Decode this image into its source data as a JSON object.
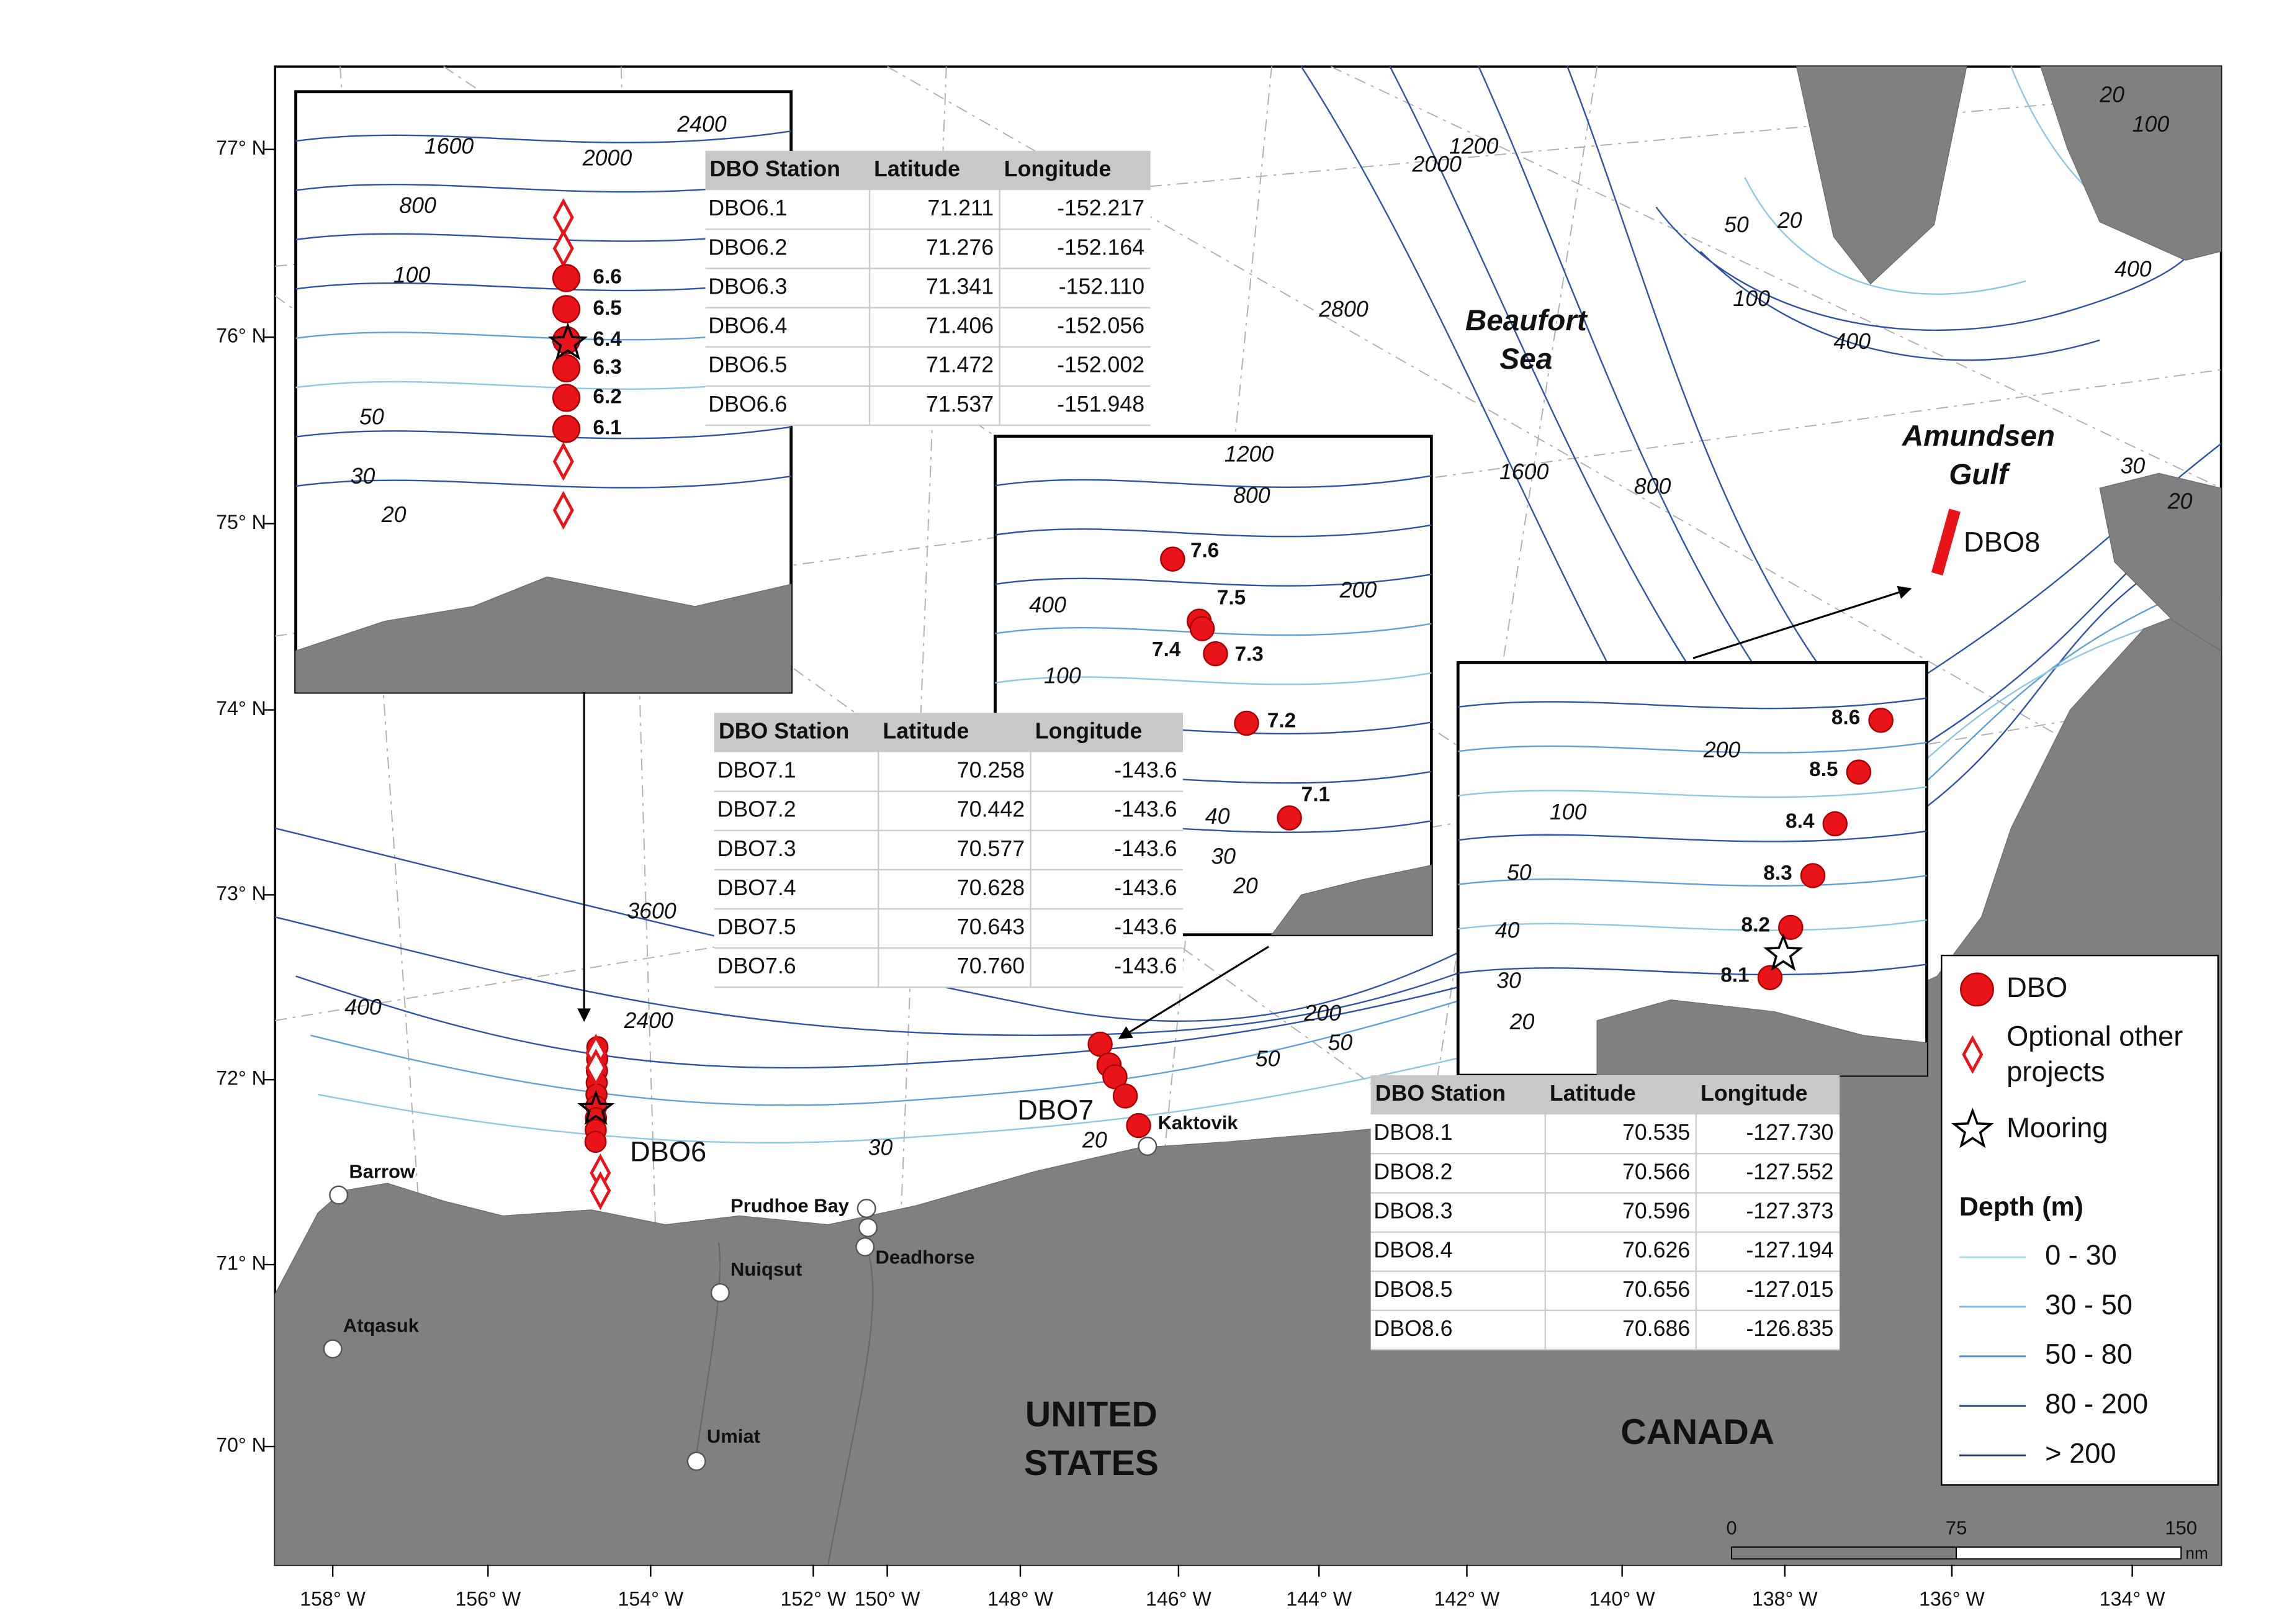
{
  "axis": {
    "lon_labels": [
      "158° W",
      "156° W",
      "154° W",
      "152° W",
      "150° W",
      "148° W",
      "146° W",
      "144° W",
      "142° W",
      "140° W",
      "138° W",
      "136° W",
      "134° W"
    ],
    "lat_labels": [
      "77° N",
      "76° N",
      "75° N",
      "74° N",
      "73° N",
      "72° N",
      "71° N",
      "70° N"
    ]
  },
  "contour_labels": [
    "2400",
    "1600",
    "2000",
    "800",
    "100",
    "50",
    "30",
    "20",
    "1200",
    "800",
    "400",
    "200",
    "100",
    "40",
    "30",
    "20",
    "200",
    "100",
    "50",
    "40",
    "30",
    "20",
    "1200",
    "2000",
    "2800",
    "1600",
    "800",
    "400",
    "100",
    "50",
    "20",
    "20",
    "100",
    "400",
    "30",
    "20",
    "3600",
    "2400",
    "400",
    "200",
    "50",
    "50",
    "30",
    "20"
  ],
  "regions": [
    {
      "lines": [
        "Beaufort",
        "Sea"
      ]
    },
    {
      "lines": [
        "Amundsen",
        "Gulf"
      ]
    }
  ],
  "countries": [
    {
      "lines": [
        "UNITED",
        "STATES"
      ]
    },
    {
      "lines": [
        "CANADA"
      ]
    }
  ],
  "places": [
    "Barrow",
    "Atqasuk",
    "Prudhoe Bay",
    "Deadhorse",
    "Nuiqsut",
    "Umiat",
    "Kaktovik"
  ],
  "station_groups": [
    "DBO6",
    "DBO7",
    "DBO8"
  ],
  "insets": [
    {
      "stations": [
        "6.6",
        "6.5",
        "6.4",
        "6.3",
        "6.2",
        "6.1"
      ]
    },
    {
      "stations": [
        "7.6",
        "7.5",
        "7.4",
        "7.3",
        "7.2",
        "7.1"
      ]
    },
    {
      "stations": [
        "8.6",
        "8.5",
        "8.4",
        "8.3",
        "8.2",
        "8.1"
      ]
    }
  ],
  "tables": [
    {
      "header": [
        "DBO Station",
        "Latitude",
        "Longitude"
      ],
      "rows": [
        [
          "DBO6.1",
          "71.211",
          "-152.217"
        ],
        [
          "DBO6.2",
          "71.276",
          "-152.164"
        ],
        [
          "DBO6.3",
          "71.341",
          "-152.110"
        ],
        [
          "DBO6.4",
          "71.406",
          "-152.056"
        ],
        [
          "DBO6.5",
          "71.472",
          "-152.002"
        ],
        [
          "DBO6.6",
          "71.537",
          "-151.948"
        ]
      ]
    },
    {
      "header": [
        "DBO Station",
        "Latitude",
        "Longitude"
      ],
      "rows": [
        [
          "DBO7.1",
          "70.258",
          "-143.6"
        ],
        [
          "DBO7.2",
          "70.442",
          "-143.6"
        ],
        [
          "DBO7.3",
          "70.577",
          "-143.6"
        ],
        [
          "DBO7.4",
          "70.628",
          "-143.6"
        ],
        [
          "DBO7.5",
          "70.643",
          "-143.6"
        ],
        [
          "DBO7.6",
          "70.760",
          "-143.6"
        ]
      ]
    },
    {
      "header": [
        "DBO Station",
        "Latitude",
        "Longitude"
      ],
      "rows": [
        [
          "DBO8.1",
          "70.535",
          "-127.730"
        ],
        [
          "DBO8.2",
          "70.566",
          "-127.552"
        ],
        [
          "DBO8.3",
          "70.596",
          "-127.373"
        ],
        [
          "DBO8.4",
          "70.626",
          "-127.194"
        ],
        [
          "DBO8.5",
          "70.656",
          "-127.015"
        ],
        [
          "DBO8.6",
          "70.686",
          "-126.835"
        ]
      ]
    }
  ],
  "legend": {
    "symbols": [
      {
        "lines": [
          "DBO"
        ]
      },
      {
        "lines": [
          "Optional other",
          "projects"
        ]
      },
      {
        "lines": [
          "Mooring"
        ]
      }
    ],
    "depth_title": "Depth (m)",
    "depth_classes": [
      "0 - 30",
      "30 - 50",
      "50 - 80",
      "80 - 200",
      "> 200"
    ]
  },
  "scale_bar": {
    "ticks": [
      "0",
      "75",
      "150"
    ],
    "unit": "nm"
  }
}
